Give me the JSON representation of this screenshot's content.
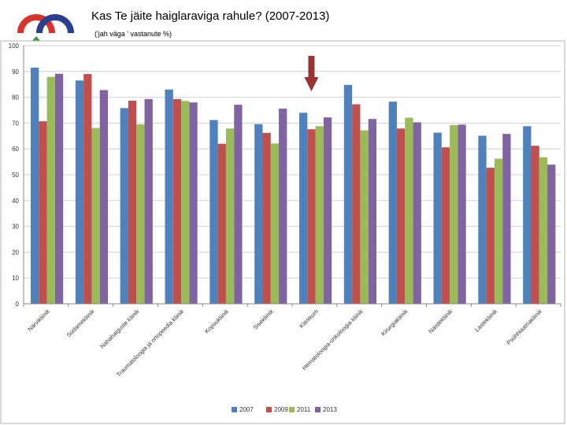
{
  "header": {
    "title": "Kas Te jäite haiglaraviga rahule? (2007-2013)",
    "subtitle": "('jah väga ' vastanute %)"
  },
  "colors": {
    "2007": "#4f81bd",
    "2009": "#c0504d",
    "2011": "#9bbb59",
    "2013": "#8064a2",
    "highlight_arrow": "#9b3333",
    "logo_red": "#d9342b",
    "logo_blue": "#2a3f8f",
    "logo_green": "#2e9b48"
  },
  "chart_data": {
    "type": "bar",
    "title": "",
    "xlabel": "",
    "ylabel": "",
    "ylim": [
      0,
      100
    ],
    "yticks": [
      0,
      10,
      20,
      30,
      40,
      50,
      60,
      70,
      80,
      90,
      100
    ],
    "grid": true,
    "legend_position": "bottom",
    "highlighted_category": "Kliinikum",
    "categories": [
      "Närvikliinik",
      "Südamekliinik",
      "Nahahaiguste kliinik",
      "Traumatoloogia ja ortopeedia kliinik",
      "Kopsukliinik",
      "Sisekliinik",
      "Kliinikum",
      "Hematoloogia-onkoloogia kliinik",
      "Kirurgiakliinik",
      "Naistekliinik",
      "Lastekliinik",
      "Psühhiaatriakliinik"
    ],
    "series": [
      {
        "name": "2007",
        "values": [
          91.5,
          86.5,
          75.8,
          83.0,
          71.2,
          69.6,
          74.0,
          84.8,
          78.3,
          66.3,
          65.1,
          68.8
        ]
      },
      {
        "name": "2009",
        "values": [
          70.7,
          89.0,
          78.7,
          79.3,
          62.0,
          66.2,
          67.6,
          77.3,
          67.9,
          60.6,
          52.7,
          61.2
        ]
      },
      {
        "name": "2011",
        "values": [
          87.9,
          68.1,
          69.5,
          78.6,
          67.9,
          62.1,
          68.8,
          67.2,
          72.1,
          69.2,
          56.2,
          56.8
        ]
      },
      {
        "name": " 2013",
        "values": [
          89.1,
          82.8,
          79.3,
          78.0,
          77.1,
          75.6,
          72.2,
          71.6,
          70.3,
          69.4,
          65.8,
          53.9
        ]
      }
    ]
  }
}
